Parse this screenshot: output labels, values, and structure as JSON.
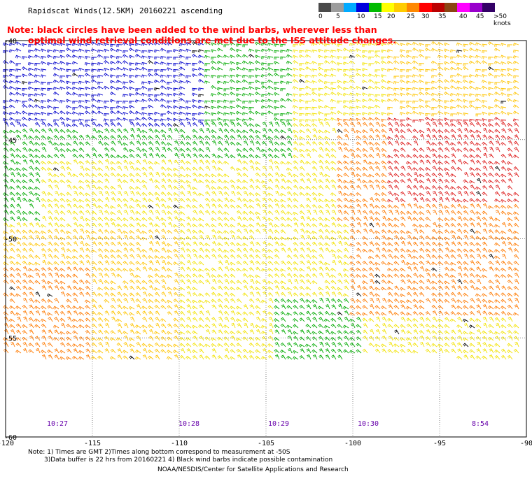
{
  "header": {
    "title": "Rapidscat Winds(12.5KM) 20160221 ascending",
    "note_line1": "Note: black circles have been added to the wind barbs, wherever less than",
    "note_line2": "optimal wind retrieval conditions are met due to the ISS attitude changes."
  },
  "legend": {
    "colors": [
      "#4a4a4a",
      "#9c9c9c",
      "#00aaff",
      "#0000dd",
      "#00bb00",
      "#ffff00",
      "#ffcc00",
      "#ff8800",
      "#ff0000",
      "#bb0000",
      "#8b4513",
      "#ff00ff",
      "#9900cc",
      "#330066"
    ],
    "labels": [
      "0",
      "5",
      "10",
      "15",
      "20",
      "25",
      "30",
      "35",
      "40",
      "45",
      ">50 knots"
    ]
  },
  "map": {
    "lat_labels": [
      "-40",
      "-45",
      "-50",
      "-55",
      "-60"
    ],
    "lon_labels": [
      "-120",
      "-115",
      "-110",
      "-105",
      "-100",
      "-95",
      "-90"
    ],
    "lat_range": [
      -60,
      -40
    ],
    "lon_range": [
      -120,
      -90
    ],
    "time_labels": [
      "10:27",
      "10:28",
      "10:29",
      "10:30",
      "8:54"
    ],
    "time_label_color": "#6600aa",
    "grid_color": "#666666"
  },
  "footer": {
    "line1": "Note: 1) Times are GMT 2)Times along bottom correspond to measurement at -50S",
    "line2": "3)Data buffer is 22 hrs from 20160221 4) Black wind barbs indicate possible contamination",
    "line3": "NOAA/NESDIS/Center for Satellite Applications and Research"
  }
}
